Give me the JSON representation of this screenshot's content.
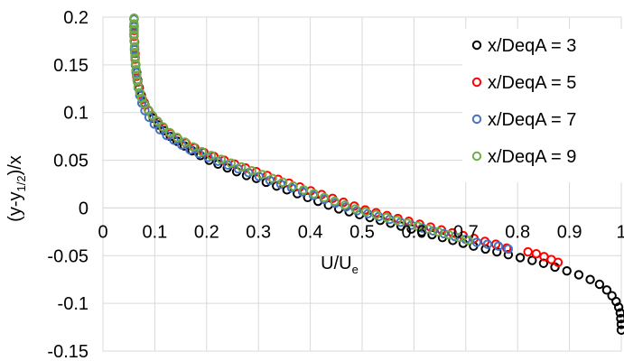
{
  "chart_data": {
    "type": "scatter",
    "title": "",
    "xlabel": "U/U",
    "xlabel_sub": "e",
    "ylabel_parts": [
      "(y-y",
      "1/2",
      ")/x"
    ],
    "xlim": [
      0,
      1
    ],
    "ylim": [
      -0.15,
      0.2
    ],
    "x_ticks": [
      "0",
      "0.1",
      "0.2",
      "0.3",
      "0.4",
      "0.5",
      "0.6",
      "0.7",
      "0.8",
      "0.9",
      "1"
    ],
    "y_ticks": [
      "0.2",
      "0.15",
      "0.1",
      "0.05",
      "0",
      "-0.05",
      "-0.1",
      "-0.15"
    ],
    "grid": true,
    "legend_position": "top-right",
    "marker": "open-circle",
    "series": [
      {
        "name": "x/DeqA = 3",
        "color": "#000000",
        "points": [
          [
            0.06,
            0.198
          ],
          [
            0.06,
            0.19
          ],
          [
            0.06,
            0.182
          ],
          [
            0.061,
            0.174
          ],
          [
            0.061,
            0.166
          ],
          [
            0.062,
            0.158
          ],
          [
            0.063,
            0.15
          ],
          [
            0.065,
            0.142
          ],
          [
            0.067,
            0.134
          ],
          [
            0.07,
            0.126
          ],
          [
            0.074,
            0.118
          ],
          [
            0.08,
            0.11
          ],
          [
            0.088,
            0.102
          ],
          [
            0.097,
            0.094
          ],
          [
            0.107,
            0.087
          ],
          [
            0.118,
            0.081
          ],
          [
            0.13,
            0.075
          ],
          [
            0.143,
            0.07
          ],
          [
            0.157,
            0.065
          ],
          [
            0.172,
            0.06
          ],
          [
            0.188,
            0.055
          ],
          [
            0.205,
            0.05
          ],
          [
            0.222,
            0.046
          ],
          [
            0.24,
            0.042
          ],
          [
            0.258,
            0.038
          ],
          [
            0.277,
            0.034
          ],
          [
            0.296,
            0.031
          ],
          [
            0.315,
            0.027
          ],
          [
            0.335,
            0.023
          ],
          [
            0.355,
            0.019
          ],
          [
            0.375,
            0.015
          ],
          [
            0.395,
            0.011
          ],
          [
            0.415,
            0.007
          ],
          [
            0.435,
            0.003
          ],
          [
            0.455,
            -0.001
          ],
          [
            0.475,
            -0.004
          ],
          [
            0.495,
            -0.007
          ],
          [
            0.515,
            -0.01
          ],
          [
            0.535,
            -0.013
          ],
          [
            0.555,
            -0.016
          ],
          [
            0.575,
            -0.019
          ],
          [
            0.595,
            -0.022
          ],
          [
            0.615,
            -0.025
          ],
          [
            0.635,
            -0.028
          ],
          [
            0.655,
            -0.031
          ],
          [
            0.675,
            -0.034
          ],
          [
            0.695,
            -0.037
          ],
          [
            0.715,
            -0.04
          ],
          [
            0.738,
            -0.043
          ],
          [
            0.76,
            -0.046
          ],
          [
            0.782,
            -0.049
          ],
          [
            0.805,
            -0.052
          ],
          [
            0.828,
            -0.055
          ],
          [
            0.85,
            -0.058
          ],
          [
            0.872,
            -0.062
          ],
          [
            0.895,
            -0.066
          ],
          [
            0.918,
            -0.07
          ],
          [
            0.94,
            -0.075
          ],
          [
            0.958,
            -0.08
          ],
          [
            0.972,
            -0.086
          ],
          [
            0.982,
            -0.092
          ],
          [
            0.99,
            -0.098
          ],
          [
            0.995,
            -0.104
          ],
          [
            0.998,
            -0.11
          ],
          [
            0.999,
            -0.116
          ],
          [
            1.0,
            -0.122
          ],
          [
            1.0,
            -0.128
          ]
        ]
      },
      {
        "name": "x/DeqA = 5",
        "color": "#ff0000",
        "points": [
          [
            0.06,
            0.198
          ],
          [
            0.06,
            0.192
          ],
          [
            0.06,
            0.186
          ],
          [
            0.06,
            0.18
          ],
          [
            0.061,
            0.174
          ],
          [
            0.061,
            0.168
          ],
          [
            0.062,
            0.162
          ],
          [
            0.062,
            0.156
          ],
          [
            0.063,
            0.15
          ],
          [
            0.064,
            0.144
          ],
          [
            0.065,
            0.138
          ],
          [
            0.067,
            0.132
          ],
          [
            0.069,
            0.126
          ],
          [
            0.072,
            0.12
          ],
          [
            0.076,
            0.114
          ],
          [
            0.081,
            0.108
          ],
          [
            0.088,
            0.102
          ],
          [
            0.096,
            0.096
          ],
          [
            0.106,
            0.09
          ],
          [
            0.117,
            0.084
          ],
          [
            0.13,
            0.078
          ],
          [
            0.144,
            0.073
          ],
          [
            0.16,
            0.068
          ],
          [
            0.177,
            0.063
          ],
          [
            0.195,
            0.058
          ],
          [
            0.214,
            0.054
          ],
          [
            0.234,
            0.05
          ],
          [
            0.254,
            0.046
          ],
          [
            0.275,
            0.042
          ],
          [
            0.296,
            0.038
          ],
          [
            0.317,
            0.034
          ],
          [
            0.338,
            0.03
          ],
          [
            0.359,
            0.026
          ],
          [
            0.38,
            0.022
          ],
          [
            0.401,
            0.018
          ],
          [
            0.422,
            0.014
          ],
          [
            0.443,
            0.01
          ],
          [
            0.464,
            0.006
          ],
          [
            0.485,
            0.002
          ],
          [
            0.506,
            -0.002
          ],
          [
            0.527,
            -0.005
          ],
          [
            0.548,
            -0.008
          ],
          [
            0.569,
            -0.011
          ],
          [
            0.59,
            -0.014
          ],
          [
            0.611,
            -0.017
          ],
          [
            0.632,
            -0.02
          ],
          [
            0.653,
            -0.023
          ],
          [
            0.674,
            -0.026
          ],
          [
            0.695,
            -0.029
          ],
          [
            0.716,
            -0.032
          ],
          [
            0.737,
            -0.035
          ],
          [
            0.758,
            -0.038
          ],
          [
            0.779,
            -0.042
          ],
          [
            0.82,
            -0.046
          ],
          [
            0.836,
            -0.048
          ],
          [
            0.851,
            -0.051
          ],
          [
            0.865,
            -0.054
          ],
          [
            0.878,
            -0.057
          ]
        ]
      },
      {
        "name": "x/DeqA = 7",
        "color": "#4472c4",
        "points": [
          [
            0.06,
            0.198
          ],
          [
            0.06,
            0.19
          ],
          [
            0.06,
            0.182
          ],
          [
            0.061,
            0.174
          ],
          [
            0.061,
            0.166
          ],
          [
            0.062,
            0.158
          ],
          [
            0.063,
            0.15
          ],
          [
            0.064,
            0.142
          ],
          [
            0.066,
            0.134
          ],
          [
            0.068,
            0.126
          ],
          [
            0.071,
            0.118
          ],
          [
            0.075,
            0.11
          ],
          [
            0.081,
            0.102
          ],
          [
            0.089,
            0.095
          ],
          [
            0.099,
            0.088
          ],
          [
            0.11,
            0.082
          ],
          [
            0.123,
            0.076
          ],
          [
            0.137,
            0.071
          ],
          [
            0.152,
            0.066
          ],
          [
            0.168,
            0.061
          ],
          [
            0.185,
            0.057
          ],
          [
            0.203,
            0.053
          ],
          [
            0.222,
            0.049
          ],
          [
            0.241,
            0.045
          ],
          [
            0.261,
            0.041
          ],
          [
            0.281,
            0.037
          ],
          [
            0.301,
            0.033
          ],
          [
            0.322,
            0.029
          ],
          [
            0.343,
            0.025
          ],
          [
            0.364,
            0.021
          ],
          [
            0.385,
            0.017
          ],
          [
            0.406,
            0.013
          ],
          [
            0.427,
            0.009
          ],
          [
            0.448,
            0.005
          ],
          [
            0.469,
            0.001
          ],
          [
            0.49,
            -0.003
          ],
          [
            0.511,
            -0.006
          ],
          [
            0.532,
            -0.009
          ],
          [
            0.553,
            -0.012
          ],
          [
            0.574,
            -0.015
          ],
          [
            0.595,
            -0.018
          ],
          [
            0.616,
            -0.021
          ],
          [
            0.637,
            -0.024
          ],
          [
            0.658,
            -0.027
          ],
          [
            0.679,
            -0.03
          ],
          [
            0.7,
            -0.033
          ],
          [
            0.721,
            -0.036
          ],
          [
            0.742,
            -0.038
          ],
          [
            0.763,
            -0.04
          ],
          [
            0.782,
            -0.043
          ]
        ]
      },
      {
        "name": "x/DeqA = 9",
        "color": "#70ad47",
        "points": [
          [
            0.06,
            0.199
          ],
          [
            0.06,
            0.193
          ],
          [
            0.06,
            0.187
          ],
          [
            0.06,
            0.181
          ],
          [
            0.06,
            0.175
          ],
          [
            0.061,
            0.169
          ],
          [
            0.061,
            0.163
          ],
          [
            0.062,
            0.157
          ],
          [
            0.063,
            0.151
          ],
          [
            0.064,
            0.145
          ],
          [
            0.065,
            0.139
          ],
          [
            0.066,
            0.133
          ],
          [
            0.068,
            0.127
          ],
          [
            0.071,
            0.121
          ],
          [
            0.075,
            0.115
          ],
          [
            0.08,
            0.109
          ],
          [
            0.087,
            0.103
          ],
          [
            0.095,
            0.097
          ],
          [
            0.105,
            0.091
          ],
          [
            0.116,
            0.085
          ],
          [
            0.129,
            0.079
          ],
          [
            0.143,
            0.074
          ],
          [
            0.158,
            0.069
          ],
          [
            0.174,
            0.064
          ],
          [
            0.191,
            0.059
          ],
          [
            0.209,
            0.055
          ],
          [
            0.228,
            0.051
          ],
          [
            0.247,
            0.047
          ],
          [
            0.267,
            0.043
          ],
          [
            0.287,
            0.039
          ],
          [
            0.307,
            0.035
          ],
          [
            0.327,
            0.031
          ],
          [
            0.347,
            0.027
          ],
          [
            0.367,
            0.023
          ],
          [
            0.387,
            0.019
          ],
          [
            0.407,
            0.015
          ],
          [
            0.427,
            0.011
          ],
          [
            0.447,
            0.007
          ],
          [
            0.467,
            0.003
          ],
          [
            0.487,
            -0.001
          ],
          [
            0.507,
            -0.004
          ],
          [
            0.527,
            -0.007
          ],
          [
            0.547,
            -0.01
          ],
          [
            0.567,
            -0.013
          ],
          [
            0.587,
            -0.016
          ],
          [
            0.607,
            -0.019
          ],
          [
            0.627,
            -0.022
          ],
          [
            0.647,
            -0.025
          ],
          [
            0.667,
            -0.028
          ],
          [
            0.687,
            -0.031
          ],
          [
            0.705,
            -0.034
          ]
        ]
      }
    ]
  }
}
